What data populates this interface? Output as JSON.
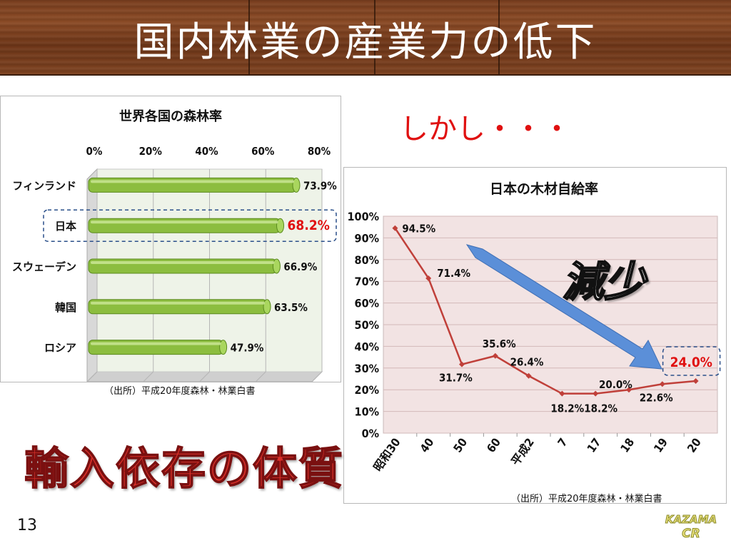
{
  "slide": {
    "title": "国内林業の産業力の低下",
    "however": "しかし・・・",
    "headline": "輸入依存の体質",
    "decrease_label": "減少",
    "page_number": "13",
    "logo_lines": [
      "KAZAMA",
      "CR"
    ]
  },
  "colors": {
    "bar_fill": "#8cbd3f",
    "line_color": "#c0403a",
    "arrow_color": "#5b8fd8",
    "highlight_red": "#e01010",
    "dashed_border": "#2a4f8a"
  },
  "chart_data": [
    {
      "type": "bar",
      "orientation": "horizontal",
      "title": "世界各国の森林率",
      "categories": [
        "フィンランド",
        "日本",
        "スウェーデン",
        "韓国",
        "ロシア"
      ],
      "values": [
        73.9,
        68.2,
        66.9,
        63.5,
        47.9
      ],
      "data_labels": [
        "73.9%",
        "68.2%",
        "66.9%",
        "63.5%",
        "47.9%"
      ],
      "highlight_index": 1,
      "xlim": [
        0,
        80
      ],
      "x_ticks": [
        "0%",
        "20%",
        "40%",
        "60%",
        "80%"
      ],
      "x_tick_values": [
        0,
        20,
        40,
        60,
        80
      ],
      "grid": true,
      "source": "（出所）平成20年度森林・林業白書"
    },
    {
      "type": "line",
      "title": "日本の木材自給率",
      "categories": [
        "昭和30",
        "40",
        "50",
        "60",
        "平成2",
        "7",
        "17",
        "18",
        "19",
        "20"
      ],
      "values": [
        94.5,
        71.4,
        31.7,
        35.6,
        26.4,
        18.2,
        18.2,
        20.0,
        22.6,
        24.0
      ],
      "data_labels": [
        "94.5%",
        "71.4%",
        "31.7%",
        "35.6%",
        "26.4%",
        "18.2%",
        "18.2%",
        "20.0%",
        "22.6%",
        "24.0%"
      ],
      "highlight_index": 9,
      "ylim": [
        0,
        100
      ],
      "y_ticks": [
        "0%",
        "10%",
        "20%",
        "30%",
        "40%",
        "50%",
        "60%",
        "70%",
        "80%",
        "90%",
        "100%"
      ],
      "y_tick_values": [
        0,
        10,
        20,
        30,
        40,
        50,
        60,
        70,
        80,
        90,
        100
      ],
      "grid": true,
      "source": "（出所）平成20年度森林・林業白書"
    }
  ]
}
